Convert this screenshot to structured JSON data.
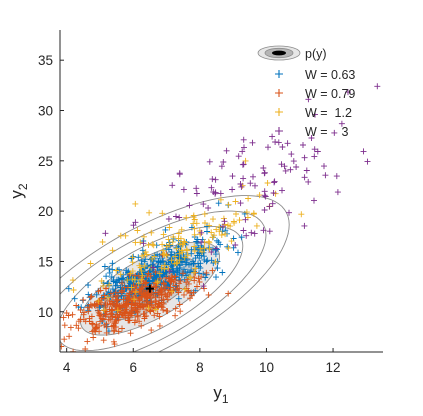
{
  "chart_data": {
    "type": "scatter",
    "title": "",
    "xlabel": "y",
    "xlabel_sub": "1",
    "ylabel": "y",
    "ylabel_sub": "2",
    "xlim": [
      3.8,
      13.5
    ],
    "ylim": [
      6,
      38
    ],
    "xticks": [
      4,
      6,
      8,
      10,
      12
    ],
    "yticks": [
      10,
      15,
      20,
      25,
      30,
      35
    ],
    "grid": false,
    "legend_position": "top-right",
    "density": {
      "label": "p(y)",
      "mean": [
        6.5,
        12.3
      ],
      "cov": [
        [
          1.35,
          2.05
        ],
        [
          2.05,
          6.6
        ]
      ],
      "contour_levels_mahalanobis": [
        0.6,
        1.2,
        1.8,
        2.4,
        3.0,
        3.6
      ],
      "fill_levels_mahalanobis": [
        1.8,
        1.2,
        0.6
      ],
      "fill_colors": [
        "#e6e6e6",
        "#cfcfcf",
        "#b5b5b5"
      ],
      "line_color": "#8c8c8c",
      "mean_marker_color": "#000000"
    },
    "series": [
      {
        "name": "W = 0.63",
        "color": "#0072BD",
        "marker": "+",
        "count": 480,
        "mean": [
          6.6,
          13.6
        ],
        "cov": [
          [
            0.9,
            1.25
          ],
          [
            1.25,
            3.4
          ]
        ],
        "seed": 11
      },
      {
        "name": "W = 0.79",
        "color": "#D95319",
        "marker": "+",
        "count": 420,
        "mean": [
          5.9,
          10.6
        ],
        "cov": [
          [
            0.75,
            0.8
          ],
          [
            0.8,
            2.3
          ]
        ],
        "seed": 23
      },
      {
        "name": "W =  1.2",
        "color": "#EDB120",
        "marker": "+",
        "count": 160,
        "mean": [
          7.5,
          16.8
        ],
        "cov": [
          [
            1.5,
            2.2
          ],
          [
            2.2,
            7.0
          ]
        ],
        "seed": 37
      },
      {
        "name": "W =    3",
        "color": "#7E2F8E",
        "marker": "+",
        "count": 110,
        "mean": [
          9.6,
          22.5
        ],
        "cov": [
          [
            2.7,
            3.6
          ],
          [
            3.6,
            12.5
          ]
        ],
        "seed": 53
      }
    ]
  }
}
